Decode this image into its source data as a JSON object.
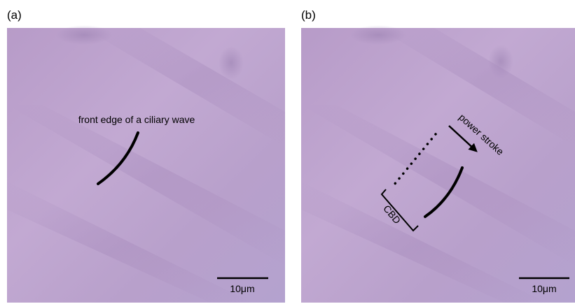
{
  "panels": [
    {
      "label": "(a)",
      "annotation": "front edge of a ciliary wave",
      "scale_bar": "10μm"
    },
    {
      "label": "(b)",
      "arrow_label": "power stroke",
      "bracket_label": "CBD",
      "scale_bar": "10μm"
    }
  ]
}
